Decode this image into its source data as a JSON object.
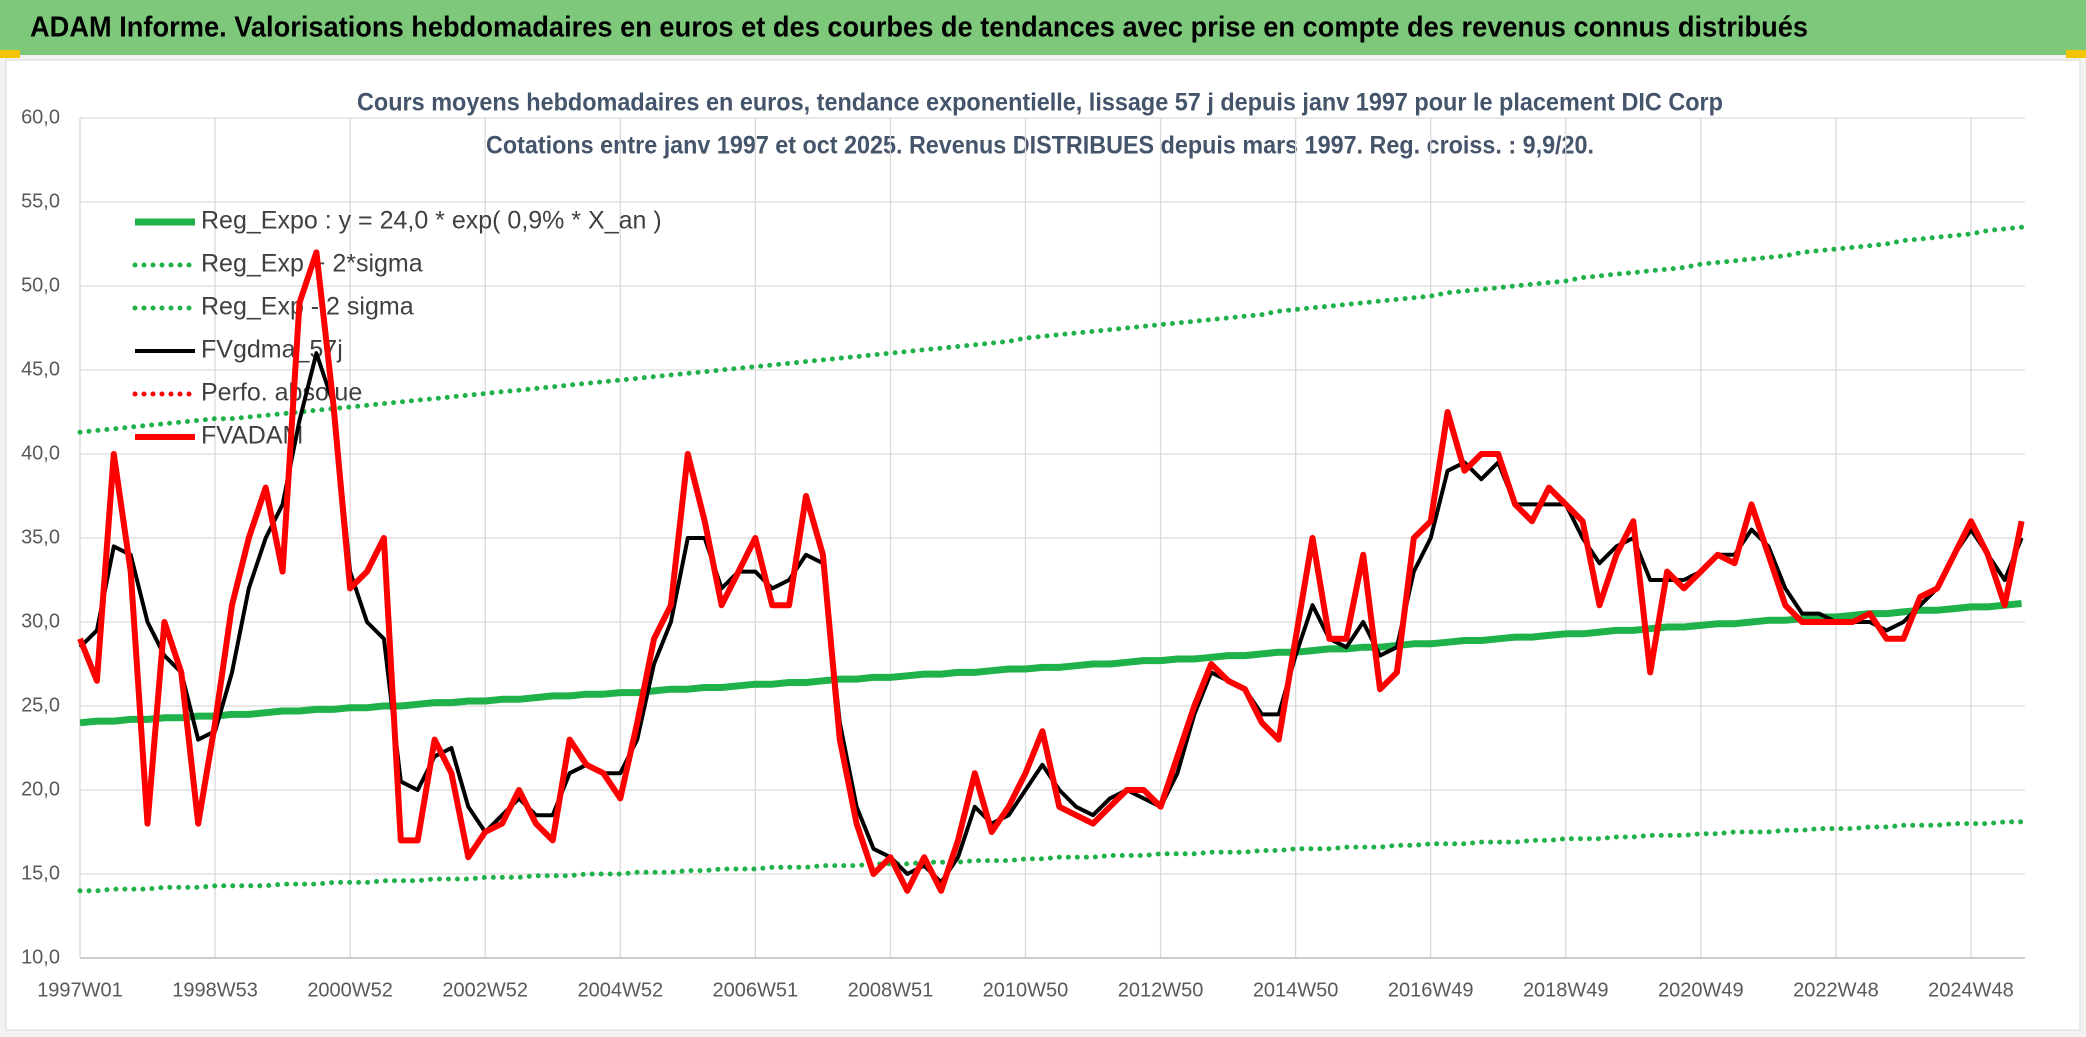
{
  "chart_data": {
    "type": "line",
    "title": "ADAM Informe. Valorisations hebdomadaires en euros et des courbes de tendances avec prise en compte des revenus connus distribués",
    "subtitle": [
      "Cours moyens hebdomadaires en euros, tendance exponentielle, lissage 57 j depuis janv 1997 pour le placement DIC Corp",
      "Cotations entre janv 1997 et oct 2025. Revenus DISTRIBUES depuis mars 1997. Reg. croiss. : 9,9/20."
    ],
    "legend": "upper left",
    "grid": true,
    "ylim": [
      10,
      60
    ],
    "yticks": [
      {
        "value": 10,
        "label": "10,0"
      },
      {
        "value": 15,
        "label": "15,0"
      },
      {
        "value": 20,
        "label": "20,0"
      },
      {
        "value": 25,
        "label": "25,0"
      },
      {
        "value": 30,
        "label": "30,0"
      },
      {
        "value": 35,
        "label": "35,0"
      },
      {
        "value": 40,
        "label": "40,0"
      },
      {
        "value": 45,
        "label": "45,0"
      },
      {
        "value": 50,
        "label": "50,0"
      },
      {
        "value": 55,
        "label": "55,0"
      },
      {
        "value": 60,
        "label": "60,0"
      }
    ],
    "categories": [
      "1997W01",
      null,
      null,
      null,
      null,
      null,
      null,
      null,
      "1998W53",
      null,
      null,
      null,
      null,
      null,
      null,
      null,
      "2000W52",
      null,
      null,
      null,
      null,
      null,
      null,
      null,
      "2002W52",
      null,
      null,
      null,
      null,
      null,
      null,
      null,
      "2004W52",
      null,
      null,
      null,
      null,
      null,
      null,
      null,
      "2006W51",
      null,
      null,
      null,
      null,
      null,
      null,
      null,
      "2008W51",
      null,
      null,
      null,
      null,
      null,
      null,
      null,
      "2010W50",
      null,
      null,
      null,
      null,
      null,
      null,
      null,
      "2012W50",
      null,
      null,
      null,
      null,
      null,
      null,
      null,
      "2014W50",
      null,
      null,
      null,
      null,
      null,
      null,
      null,
      "2016W49",
      null,
      null,
      null,
      null,
      null,
      null,
      null,
      "2018W49",
      null,
      null,
      null,
      null,
      null,
      null,
      null,
      "2020W49",
      null,
      null,
      null,
      null,
      null,
      null,
      null,
      "2022W48",
      null,
      null,
      null,
      null,
      null,
      null,
      null,
      "2024W48",
      null,
      null,
      null
    ],
    "series": [
      {
        "name": "Reg_Expo : y = 24,0 * exp( 0,9% *  X_an )",
        "color": "#1fb14a",
        "line_style": "solid",
        "values": [
          24.0,
          24.1,
          24.1,
          24.2,
          24.2,
          24.3,
          24.3,
          24.4,
          24.4,
          24.5,
          24.5,
          24.6,
          24.7,
          24.7,
          24.8,
          24.8,
          24.9,
          24.9,
          25.0,
          25.0,
          25.1,
          25.2,
          25.2,
          25.3,
          25.3,
          25.4,
          25.4,
          25.5,
          25.6,
          25.6,
          25.7,
          25.7,
          25.8,
          25.8,
          25.9,
          26.0,
          26.0,
          26.1,
          26.1,
          26.2,
          26.3,
          26.3,
          26.4,
          26.4,
          26.5,
          26.6,
          26.6,
          26.7,
          26.7,
          26.8,
          26.9,
          26.9,
          27.0,
          27.0,
          27.1,
          27.2,
          27.2,
          27.3,
          27.3,
          27.4,
          27.5,
          27.5,
          27.6,
          27.7,
          27.7,
          27.8,
          27.8,
          27.9,
          28.0,
          28.0,
          28.1,
          28.2,
          28.2,
          28.3,
          28.4,
          28.4,
          28.5,
          28.5,
          28.6,
          28.7,
          28.7,
          28.8,
          28.9,
          28.9,
          29.0,
          29.1,
          29.1,
          29.2,
          29.3,
          29.3,
          29.4,
          29.5,
          29.5,
          29.6,
          29.7,
          29.7,
          29.8,
          29.9,
          29.9,
          30.0,
          30.1,
          30.1,
          30.2,
          30.3,
          30.3,
          30.4,
          30.5,
          30.5,
          30.6,
          30.7,
          30.7,
          30.8,
          30.9,
          30.9,
          31.0,
          31.1
        ]
      },
      {
        "name": "Reg_Exp + 2*sigma",
        "color": "#1fb14a",
        "line_style": "dotted",
        "values": [
          41.3,
          41.4,
          41.5,
          41.6,
          41.7,
          41.8,
          41.9,
          42.0,
          42.1,
          42.1,
          42.2,
          42.3,
          42.4,
          42.5,
          42.6,
          42.7,
          42.8,
          42.9,
          43.0,
          43.1,
          43.2,
          43.3,
          43.4,
          43.5,
          43.6,
          43.7,
          43.8,
          43.9,
          44.0,
          44.1,
          44.2,
          44.3,
          44.4,
          44.5,
          44.6,
          44.7,
          44.8,
          44.9,
          45.0,
          45.1,
          45.2,
          45.3,
          45.4,
          45.5,
          45.6,
          45.7,
          45.8,
          45.9,
          46.0,
          46.1,
          46.2,
          46.3,
          46.4,
          46.5,
          46.6,
          46.7,
          46.9,
          47.0,
          47.1,
          47.2,
          47.3,
          47.4,
          47.5,
          47.6,
          47.7,
          47.8,
          47.9,
          48.0,
          48.1,
          48.2,
          48.3,
          48.5,
          48.6,
          48.7,
          48.8,
          48.9,
          49.0,
          49.1,
          49.2,
          49.3,
          49.4,
          49.6,
          49.7,
          49.8,
          49.9,
          50.0,
          50.1,
          50.2,
          50.3,
          50.5,
          50.6,
          50.7,
          50.8,
          50.9,
          51.0,
          51.1,
          51.3,
          51.4,
          51.5,
          51.6,
          51.7,
          51.8,
          52.0,
          52.1,
          52.2,
          52.3,
          52.4,
          52.5,
          52.7,
          52.8,
          52.9,
          53.0,
          53.1,
          53.3,
          53.4,
          53.5
        ]
      },
      {
        "name": "Reg_Exp - 2 sigma",
        "color": "#1fb14a",
        "line_style": "dotted",
        "values": [
          14.0,
          14.0,
          14.1,
          14.1,
          14.1,
          14.2,
          14.2,
          14.2,
          14.3,
          14.3,
          14.3,
          14.3,
          14.4,
          14.4,
          14.4,
          14.5,
          14.5,
          14.5,
          14.6,
          14.6,
          14.6,
          14.7,
          14.7,
          14.7,
          14.8,
          14.8,
          14.8,
          14.9,
          14.9,
          14.9,
          15.0,
          15.0,
          15.0,
          15.1,
          15.1,
          15.1,
          15.2,
          15.2,
          15.3,
          15.3,
          15.3,
          15.4,
          15.4,
          15.4,
          15.5,
          15.5,
          15.5,
          15.6,
          15.6,
          15.6,
          15.7,
          15.7,
          15.7,
          15.8,
          15.8,
          15.8,
          15.9,
          15.9,
          16.0,
          16.0,
          16.0,
          16.1,
          16.1,
          16.1,
          16.2,
          16.2,
          16.2,
          16.3,
          16.3,
          16.3,
          16.4,
          16.4,
          16.5,
          16.5,
          16.5,
          16.6,
          16.6,
          16.6,
          16.7,
          16.7,
          16.8,
          16.8,
          16.8,
          16.9,
          16.9,
          16.9,
          17.0,
          17.0,
          17.1,
          17.1,
          17.1,
          17.2,
          17.2,
          17.3,
          17.3,
          17.3,
          17.4,
          17.4,
          17.5,
          17.5,
          17.5,
          17.6,
          17.6,
          17.7,
          17.7,
          17.7,
          17.8,
          17.8,
          17.9,
          17.9,
          17.9,
          18.0,
          18.0,
          18.0,
          18.1,
          18.1
        ]
      },
      {
        "name": "FVgdma_57j",
        "color": "#000000",
        "line_style": "solid",
        "values": [
          28.5,
          29.5,
          34.5,
          34,
          30,
          28,
          27,
          23,
          23.5,
          27,
          32,
          35,
          37,
          42,
          46,
          43,
          33,
          30,
          29,
          20.5,
          20,
          22,
          22.5,
          19,
          17.5,
          18.5,
          19.5,
          18.5,
          18.5,
          21,
          21.5,
          21,
          21,
          23,
          27.5,
          30,
          35,
          35,
          32,
          33,
          33,
          32,
          32.5,
          34,
          33.5,
          24,
          19,
          16.5,
          16,
          15,
          15.5,
          14.5,
          16,
          19,
          18,
          18.5,
          20,
          21.5,
          20,
          19,
          18.5,
          19.5,
          20,
          19.5,
          19,
          21,
          24.5,
          27,
          26.5,
          26,
          24.5,
          24.5,
          28,
          31,
          29,
          28.5,
          30,
          28,
          28.5,
          33,
          35,
          39,
          39.5,
          38.5,
          39.5,
          37,
          37,
          37,
          37,
          35,
          33.5,
          34.5,
          35,
          32.5,
          32.5,
          32.5,
          33,
          34,
          34,
          35.5,
          34.5,
          32,
          30.5,
          30.5,
          30,
          30,
          30,
          29.5,
          30,
          31,
          32,
          34,
          35.5,
          34,
          32.5,
          35
        ]
      },
      {
        "name": "Perfo. absolue",
        "color": "#ff0000",
        "line_style": "dotted",
        "values": [
          null,
          null,
          null,
          null,
          null,
          null,
          null,
          null,
          null,
          null,
          null,
          null,
          null,
          null,
          null,
          null,
          null,
          null,
          null,
          null,
          null,
          null,
          null,
          null,
          null,
          null,
          null,
          null,
          null,
          null,
          null,
          null,
          null,
          null,
          null,
          null,
          null,
          null,
          null,
          null,
          null,
          null,
          null,
          null,
          null,
          null,
          null,
          null,
          null,
          null,
          null,
          null,
          null,
          null,
          null,
          null,
          null,
          null,
          null,
          null,
          null,
          null,
          null,
          null,
          null,
          null,
          null,
          null,
          null,
          null,
          null,
          null,
          null,
          null,
          null,
          null,
          null,
          null,
          null,
          null,
          null,
          null,
          null,
          null,
          null,
          null,
          null,
          null,
          null,
          null,
          null,
          null,
          null,
          null,
          null,
          null,
          null,
          null,
          null,
          null,
          null,
          null,
          null,
          null,
          null,
          null,
          null,
          null,
          null,
          null,
          null,
          null,
          null,
          null,
          null,
          null
        ]
      },
      {
        "name": "FVADAM",
        "color": "#ff0000",
        "line_style": "solid",
        "values": [
          29,
          26.5,
          40,
          33,
          18,
          30,
          27,
          18,
          24,
          31,
          35,
          38,
          33,
          49,
          52,
          43,
          32,
          33,
          35,
          17,
          17,
          23,
          21,
          16,
          17.5,
          18,
          20,
          18,
          17,
          23,
          21.5,
          21,
          19.5,
          24,
          29,
          31,
          40,
          36,
          31,
          33,
          35,
          31,
          31,
          37.5,
          34,
          23,
          18,
          15,
          16,
          14,
          16,
          14,
          17,
          21,
          17.5,
          19,
          21,
          23.5,
          19,
          18.5,
          18,
          19,
          20,
          20,
          19,
          22,
          25,
          27.5,
          26.5,
          26,
          24,
          23,
          29,
          35,
          29,
          29,
          34,
          26,
          27,
          35,
          36,
          42.5,
          39,
          40,
          40,
          37,
          36,
          38,
          37,
          36,
          31,
          34,
          36,
          27,
          33,
          32,
          33,
          34,
          33.5,
          37,
          34,
          31,
          30,
          30,
          30,
          30,
          30.5,
          29,
          29,
          31.5,
          32,
          34,
          36,
          34,
          31,
          36
        ]
      }
    ]
  }
}
